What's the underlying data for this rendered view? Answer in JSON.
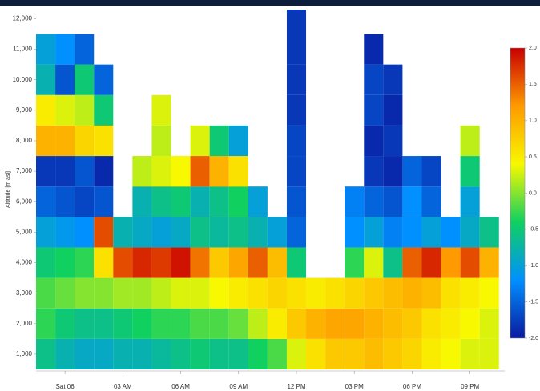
{
  "chart_data": {
    "type": "heatmap",
    "y_label": "Altitude [m asl]",
    "x": [
      -1,
      0,
      1,
      2,
      3,
      4,
      5,
      6,
      7,
      8,
      9,
      10,
      11,
      12,
      13,
      14,
      15,
      16,
      17,
      18,
      19,
      20,
      21,
      22
    ],
    "y": [
      1000,
      2000,
      3000,
      4000,
      5000,
      6000,
      7000,
      8000,
      9000,
      10000,
      11000,
      12000
    ],
    "xlim": [
      -1.5,
      22.8
    ],
    "ylim": [
      500,
      12300
    ],
    "xticks": [
      {
        "value": 0,
        "label": "Sat 06"
      },
      {
        "value": 3,
        "label": "03 AM"
      },
      {
        "value": 6,
        "label": "06 AM"
      },
      {
        "value": 9,
        "label": "09 AM"
      },
      {
        "value": 12,
        "label": "12 PM"
      },
      {
        "value": 15,
        "label": "03 PM"
      },
      {
        "value": 18,
        "label": "06 PM"
      },
      {
        "value": 21,
        "label": "09 PM"
      }
    ],
    "yticks": [
      {
        "value": 1000,
        "label": "1,000"
      },
      {
        "value": 2000,
        "label": "2,000"
      },
      {
        "value": 3000,
        "label": "3,000"
      },
      {
        "value": 4000,
        "label": "4,000"
      },
      {
        "value": 5000,
        "label": "5,000"
      },
      {
        "value": 6000,
        "label": "6,000"
      },
      {
        "value": 7000,
        "label": "7,000"
      },
      {
        "value": 8000,
        "label": "8,000"
      },
      {
        "value": 9000,
        "label": "9,000"
      },
      {
        "value": 10000,
        "label": "10,000"
      },
      {
        "value": 11000,
        "label": "11,000"
      },
      {
        "value": 12000,
        "label": "12,000"
      }
    ],
    "zlim": [
      -2,
      2
    ],
    "zticks": [
      {
        "value": 2,
        "label": "2.0"
      },
      {
        "value": 1.5,
        "label": "1.5"
      },
      {
        "value": 1,
        "label": "1.0"
      },
      {
        "value": 0.5,
        "label": "0.5"
      },
      {
        "value": 0,
        "label": "0.0"
      },
      {
        "value": -0.5,
        "label": "-0.5"
      },
      {
        "value": -1,
        "label": "-1.0"
      },
      {
        "value": -1.5,
        "label": "-1.5"
      },
      {
        "value": -2,
        "label": "-2.0"
      }
    ],
    "colorscale": [
      "#0a1aa0",
      "#0090ff",
      "#10d060",
      "#f8f800",
      "#ff9a00",
      "#c80000"
    ],
    "z": [
      [
        -0.6,
        -0.8,
        -0.9,
        -0.9,
        -0.8,
        -0.8,
        -0.7,
        -0.6,
        -0.5,
        -0.6,
        -0.6,
        -0.4,
        -0.2,
        0.3,
        0.6,
        0.8,
        0.8,
        0.9,
        0.8,
        0.7,
        0.5,
        0.4,
        0.3,
        0.3
      ],
      [
        -0.3,
        -0.5,
        -0.6,
        -0.6,
        -0.5,
        -0.4,
        -0.3,
        -0.3,
        -0.2,
        -0.2,
        -0.1,
        0.2,
        0.5,
        0.8,
        1.0,
        1.1,
        1.1,
        1.0,
        0.9,
        0.8,
        0.6,
        0.5,
        0.4,
        0.3
      ],
      [
        -0.2,
        -0.1,
        0,
        0,
        0.1,
        0.1,
        0.2,
        0.3,
        0.3,
        0.4,
        0.5,
        0.6,
        0.7,
        0.6,
        0.5,
        0.6,
        0.7,
        0.8,
        0.9,
        1.0,
        0.9,
        0.6,
        0.5,
        0.4
      ],
      [
        -0.5,
        -0.4,
        -0.3,
        0.6,
        1.6,
        1.8,
        1.7,
        1.9,
        1.4,
        0.8,
        1.1,
        1.5,
        0.9,
        -0.5,
        null,
        null,
        -0.3,
        0.3,
        -0.6,
        1.5,
        1.8,
        1.2,
        1.6,
        1.0
      ],
      [
        -1.0,
        -1.1,
        -1.2,
        1.6,
        -0.8,
        -0.9,
        -1.0,
        -0.9,
        -0.6,
        -0.7,
        -0.6,
        -0.8,
        -1.0,
        -1.5,
        null,
        null,
        -1.2,
        -1.0,
        -1.3,
        -1.2,
        -1.0,
        -1.2,
        -0.9,
        -0.6
      ],
      [
        -1.5,
        -1.6,
        -1.7,
        -1.6,
        null,
        -0.8,
        -0.6,
        -0.5,
        -0.8,
        -0.6,
        -0.4,
        -1.0,
        null,
        -1.6,
        null,
        null,
        -1.3,
        -1.5,
        -1.6,
        -1.2,
        -1.5,
        null,
        -1.0,
        null
      ],
      [
        -1.8,
        -1.8,
        -1.6,
        -1.9,
        null,
        0.2,
        0.3,
        0.4,
        1.5,
        1.0,
        0.6,
        null,
        null,
        -1.7,
        null,
        null,
        null,
        -1.8,
        -1.9,
        -1.5,
        -1.7,
        null,
        -0.5,
        null
      ],
      [
        1.0,
        1.0,
        0.7,
        0.6,
        null,
        null,
        0.2,
        null,
        0.3,
        -0.5,
        -1.0,
        null,
        null,
        -1.7,
        null,
        null,
        null,
        -1.9,
        -1.8,
        null,
        null,
        null,
        0.2,
        null
      ],
      [
        0.5,
        0.3,
        0.2,
        -0.5,
        null,
        null,
        0.3,
        null,
        null,
        null,
        null,
        null,
        null,
        -1.8,
        null,
        null,
        null,
        -1.7,
        -1.9,
        null,
        null,
        null,
        null,
        null
      ],
      [
        -0.8,
        -1.6,
        -0.5,
        -1.5,
        null,
        null,
        null,
        null,
        null,
        null,
        null,
        null,
        null,
        -1.8,
        null,
        null,
        null,
        -1.7,
        -1.8,
        null,
        null,
        null,
        null,
        null
      ],
      [
        -1.0,
        -1.2,
        -1.5,
        null,
        null,
        null,
        null,
        null,
        null,
        null,
        null,
        null,
        null,
        -1.8,
        null,
        null,
        null,
        -1.9,
        null,
        null,
        null,
        null,
        null,
        null
      ],
      [
        null,
        null,
        null,
        null,
        null,
        null,
        null,
        null,
        null,
        null,
        null,
        null,
        null,
        -1.8,
        null,
        null,
        null,
        null,
        null,
        null,
        null,
        null,
        null,
        null
      ]
    ]
  }
}
